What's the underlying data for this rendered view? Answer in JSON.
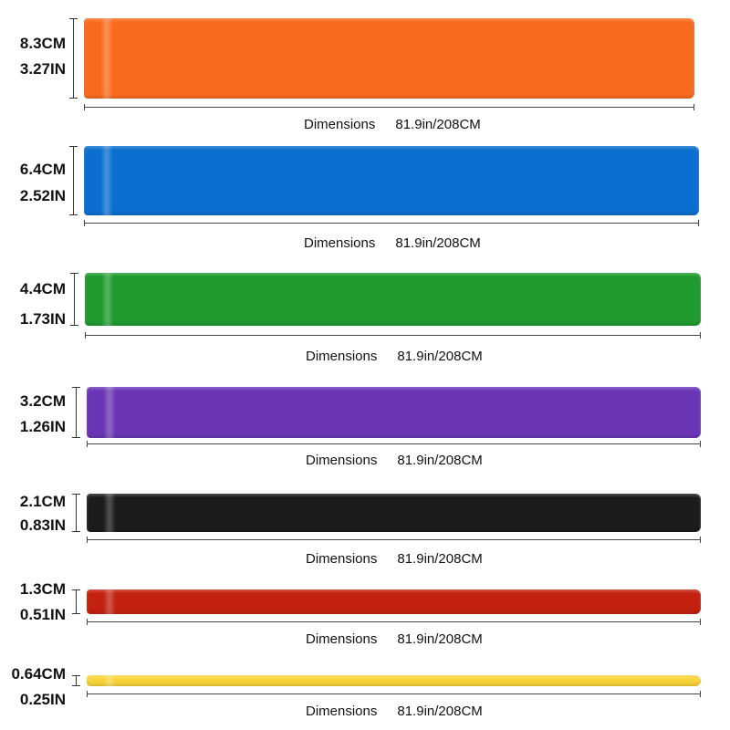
{
  "bands": [
    {
      "width_cm": "8.3CM",
      "width_in": "3.27IN",
      "color": "#f86b1f",
      "dimensions_label": "Dimensions",
      "length": "81.9in/208CM"
    },
    {
      "width_cm": "6.4CM",
      "width_in": "2.52IN",
      "color": "#0a6fcf",
      "dimensions_label": "Dimensions",
      "length": "81.9in/208CM"
    },
    {
      "width_cm": "4.4CM",
      "width_in": "1.73IN",
      "color": "#1e9a2e",
      "dimensions_label": "Dimensions",
      "length": "81.9in/208CM"
    },
    {
      "width_cm": "3.2CM",
      "width_in": "1.26IN",
      "color": "#6a35b5",
      "dimensions_label": "Dimensions",
      "length": "81.9in/208CM"
    },
    {
      "width_cm": "2.1CM",
      "width_in": "0.83IN",
      "color": "#1b1b1b",
      "dimensions_label": "Dimensions",
      "length": "81.9in/208CM"
    },
    {
      "width_cm": "1.3CM",
      "width_in": "0.51IN",
      "color": "#c3200f",
      "dimensions_label": "Dimensions",
      "length": "81.9in/208CM"
    },
    {
      "width_cm": "0.64CM",
      "width_in": "0.25IN",
      "color": "#f8d43a",
      "dimensions_label": "Dimensions",
      "length": "81.9in/208CM"
    }
  ]
}
